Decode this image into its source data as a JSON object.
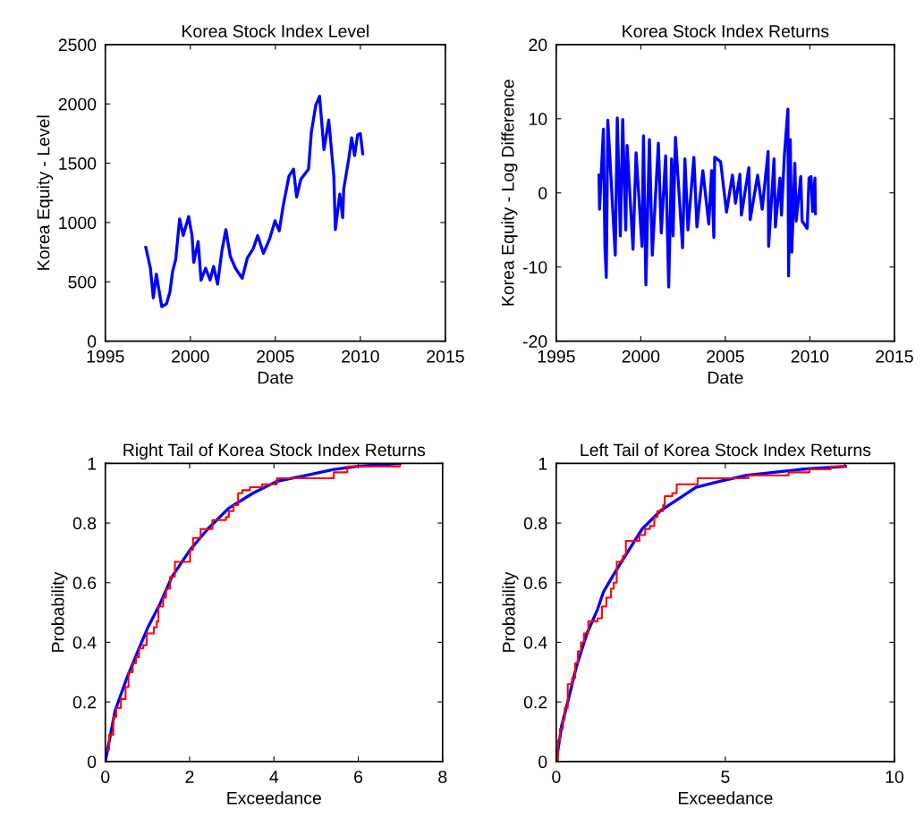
{
  "chart_data": [
    {
      "type": "line",
      "title": "Korea Stock Index Level",
      "xlabel": "Date",
      "ylabel": "Korea Equity - Level",
      "xlim": [
        1995,
        2015
      ],
      "xticks": [
        1995,
        2000,
        2005,
        2010,
        2015
      ],
      "ylim": [
        0,
        2500
      ],
      "yticks": [
        0,
        500,
        1000,
        1500,
        2000,
        2500
      ],
      "series": [
        {
          "color": "#0000ff",
          "x": [
            1997.38,
            1997.65,
            1997.82,
            1998.0,
            1998.32,
            1998.6,
            1998.8,
            1998.96,
            1999.14,
            1999.37,
            1999.58,
            1999.9,
            2000.1,
            2000.2,
            2000.46,
            2000.63,
            2000.9,
            2001.16,
            2001.37,
            2001.6,
            2001.86,
            2002.09,
            2002.35,
            2002.65,
            2003.05,
            2003.35,
            2003.7,
            2003.96,
            2004.3,
            2004.67,
            2004.98,
            2005.23,
            2005.46,
            2005.8,
            2006.07,
            2006.25,
            2006.5,
            2006.95,
            2007.12,
            2007.38,
            2007.6,
            2007.86,
            2008.14,
            2008.44,
            2008.53,
            2008.79,
            2008.96,
            2009.02,
            2009.32,
            2009.49,
            2009.66,
            2009.84,
            2010.0,
            2010.14
          ],
          "values": [
            790,
            615,
            365,
            565,
            290,
            315,
            415,
            590,
            690,
            1030,
            890,
            1050,
            890,
            665,
            840,
            515,
            615,
            515,
            630,
            480,
            765,
            940,
            715,
            615,
            530,
            700,
            780,
            890,
            740,
            865,
            1015,
            930,
            1140,
            1390,
            1450,
            1215,
            1365,
            1450,
            1765,
            1990,
            2065,
            1615,
            1865,
            1390,
            940,
            1240,
            1040,
            1280,
            1540,
            1715,
            1565,
            1740,
            1750,
            1580
          ]
        }
      ]
    },
    {
      "type": "line",
      "title": "Korea Stock Index Returns",
      "xlabel": "Date",
      "ylabel": "Korea Equity - Log Difference",
      "xlim": [
        1995,
        2015
      ],
      "xticks": [
        1995,
        2000,
        2005,
        2010,
        2015
      ],
      "ylim": [
        -20,
        20
      ],
      "yticks": [
        -20,
        -10,
        0,
        10,
        20
      ],
      "series": [
        {
          "color": "#0000ff",
          "x": [
            1997.53,
            1997.56,
            1997.79,
            1997.88,
            1997.96,
            1998.05,
            1998.49,
            1998.61,
            1998.79,
            1998.93,
            1999.11,
            1999.19,
            1999.54,
            1999.72,
            2000.07,
            2000.16,
            2000.3,
            2000.51,
            2000.68,
            2001.04,
            2001.21,
            2001.47,
            2001.65,
            2001.82,
            2001.91,
            2002.05,
            2002.47,
            2002.61,
            2002.79,
            2003.14,
            2003.32,
            2003.67,
            2004.02,
            2004.19,
            2004.32,
            2004.37,
            2004.72,
            2005.07,
            2005.42,
            2005.6,
            2005.86,
            2005.95,
            2006.39,
            2006.47,
            2006.91,
            2007.18,
            2007.53,
            2007.56,
            2007.88,
            2007.96,
            2008.23,
            2008.32,
            2008.49,
            2008.7,
            2008.74,
            2008.84,
            2008.93,
            2009.11,
            2009.19,
            2009.46,
            2009.54,
            2009.84,
            2009.95,
            2010.07,
            2010.16,
            2010.3,
            2010.33
          ],
          "values": [
            2.4,
            -2.2,
            8.6,
            -7.4,
            -11.4,
            9.8,
            -8.4,
            10.1,
            -5.8,
            9.9,
            -5,
            6.4,
            -7.6,
            5.4,
            -7.2,
            7.7,
            -12.4,
            7.2,
            -8.4,
            6.7,
            -5.4,
            5,
            -12.7,
            4.6,
            -5.8,
            7.5,
            -7.4,
            4.6,
            -5,
            4.8,
            -4.6,
            3,
            -4.2,
            3,
            -6,
            4.8,
            4.2,
            -2.6,
            2.4,
            -1.4,
            2.5,
            -3,
            3.4,
            -3.6,
            2.4,
            -2.2,
            5.6,
            -7.2,
            4.6,
            -4.6,
            2,
            -3,
            5,
            11.3,
            -11.2,
            7.2,
            -8,
            4,
            -3.8,
            2.2,
            -3.8,
            -4.8,
            2,
            2.2,
            -2.5,
            2,
            -2.8
          ]
        }
      ]
    },
    {
      "type": "line",
      "title": "Right Tail of Korea Stock Index Returns",
      "xlabel": "Exceedance",
      "ylabel": "Probability",
      "xlim": [
        0,
        8
      ],
      "xticks": [
        0,
        2,
        4,
        6,
        8
      ],
      "ylim": [
        0,
        1
      ],
      "yticks": [
        0,
        0.2,
        0.4,
        0.6,
        0.8,
        1
      ],
      "series": [
        {
          "type": "line",
          "color": "#0000ff",
          "x": [
            0,
            0.23,
            0.51,
            0.8,
            1.01,
            1.3,
            1.58,
            2.01,
            2.43,
            2.93,
            3.5,
            4.07,
            4.78,
            5.42,
            5.99,
            6.99
          ],
          "values": [
            0,
            0.17,
            0.28,
            0.38,
            0.45,
            0.53,
            0.62,
            0.71,
            0.78,
            0.85,
            0.9,
            0.94,
            0.96,
            0.98,
            0.99,
            1.0
          ]
        },
        {
          "type": "step",
          "color": "#ff0000",
          "x": [
            0,
            0.09,
            0.19,
            0.26,
            0.37,
            0.48,
            0.55,
            0.65,
            0.73,
            0.8,
            0.9,
            0.98,
            1.15,
            1.22,
            1.26,
            1.37,
            1.44,
            1.54,
            1.65,
            1.9,
            2.01,
            2.08,
            2.26,
            2.47,
            2.54,
            2.86,
            2.93,
            3.04,
            3.15,
            3.25,
            3.43,
            3.72,
            3.89,
            4.07,
            5.28,
            5.42,
            5.74,
            6.99
          ],
          "values": [
            0.04,
            0.09,
            0.15,
            0.18,
            0.21,
            0.25,
            0.3,
            0.33,
            0.35,
            0.38,
            0.39,
            0.43,
            0.45,
            0.47,
            0.52,
            0.55,
            0.58,
            0.62,
            0.67,
            0.67,
            0.71,
            0.75,
            0.78,
            0.78,
            0.81,
            0.82,
            0.84,
            0.86,
            0.9,
            0.91,
            0.92,
            0.93,
            0.93,
            0.95,
            0.95,
            0.97,
            0.99,
            1.0
          ]
        }
      ]
    },
    {
      "type": "line",
      "title": "Left Tail of Korea Stock Index Returns",
      "xlabel": "Exceedance",
      "ylabel": "Probability",
      "xlim": [
        0,
        10
      ],
      "xticks": [
        0,
        5,
        10
      ],
      "ylim": [
        0,
        1
      ],
      "yticks": [
        0,
        0.2,
        0.4,
        0.6,
        0.8,
        1
      ],
      "series": [
        {
          "type": "line",
          "color": "#0000ff",
          "x": [
            0,
            0.16,
            0.34,
            0.6,
            0.91,
            1.22,
            1.4,
            1.66,
            1.93,
            2.54,
            3.07,
            3.6,
            4.13,
            4.84,
            5.64,
            7.23,
            8.55
          ],
          "values": [
            0,
            0.12,
            0.2,
            0.32,
            0.43,
            0.51,
            0.57,
            0.62,
            0.67,
            0.78,
            0.84,
            0.88,
            0.92,
            0.94,
            0.96,
            0.98,
            0.99
          ]
        },
        {
          "type": "step",
          "color": "#ff0000",
          "x": [
            0,
            0.05,
            0.11,
            0.2,
            0.25,
            0.34,
            0.47,
            0.56,
            0.64,
            0.73,
            0.82,
            0.95,
            1.22,
            1.35,
            1.48,
            1.62,
            1.7,
            1.79,
            1.97,
            2.06,
            2.46,
            2.63,
            2.77,
            2.9,
            2.99,
            3.16,
            3.21,
            3.43,
            3.56,
            4.18,
            5.68,
            6.87,
            7.49,
            8.11,
            8.53
          ],
          "values": [
            0,
            0.07,
            0.11,
            0.14,
            0.18,
            0.26,
            0.28,
            0.33,
            0.37,
            0.4,
            0.43,
            0.47,
            0.48,
            0.52,
            0.55,
            0.58,
            0.6,
            0.67,
            0.69,
            0.74,
            0.76,
            0.78,
            0.79,
            0.82,
            0.84,
            0.86,
            0.89,
            0.9,
            0.93,
            0.95,
            0.96,
            0.97,
            0.98,
            0.99,
            1.0
          ]
        }
      ]
    }
  ]
}
